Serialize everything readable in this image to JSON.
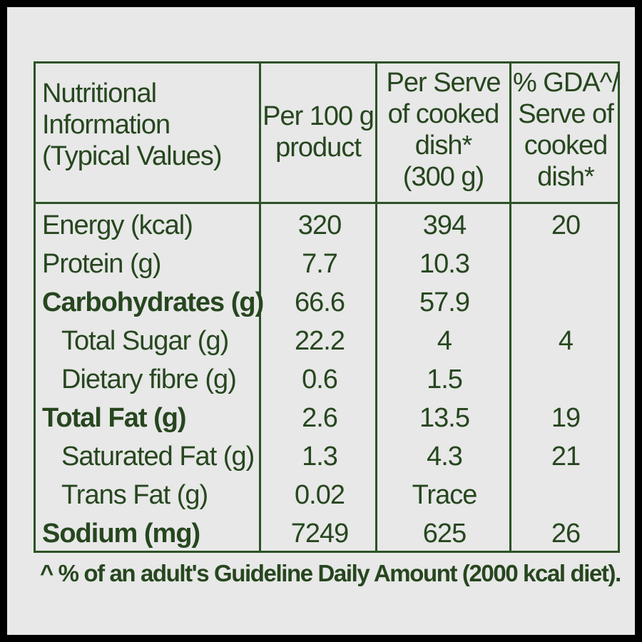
{
  "colors": {
    "ink": "#27461f",
    "border": "#2d5226",
    "background": "#e7e8e7",
    "frame": "#000000"
  },
  "table": {
    "headers": {
      "nutrient": "Nutritional\nInformation\n(Typical Values)",
      "per100g": "Per 100 g\nproduct",
      "perServe": "Per Serve\nof cooked\ndish*\n(300 g)",
      "gda": "% GDA^/\nServe of\ncooked\ndish*"
    },
    "rows": [
      {
        "label": "Energy (kcal)",
        "per100g": "320",
        "perServe": "394",
        "gda": "20"
      },
      {
        "label": "Protein (g)",
        "per100g": "7.7",
        "perServe": "10.3",
        "gda": ""
      },
      {
        "label": "Carbohydrates (g)",
        "per100g": "66.6",
        "perServe": "57.9",
        "gda": ""
      },
      {
        "label": "Total Sugar (g)",
        "per100g": "22.2",
        "perServe": "4",
        "gda": "4"
      },
      {
        "label": "Dietary fibre (g)",
        "per100g": "0.6",
        "perServe": "1.5",
        "gda": ""
      },
      {
        "label": "Total Fat (g)",
        "per100g": "2.6",
        "perServe": "13.5",
        "gda": "19"
      },
      {
        "label": "Saturated Fat (g)",
        "per100g": "1.3",
        "perServe": "4.3",
        "gda": "21"
      },
      {
        "label": "Trans Fat (g)",
        "per100g": "0.02",
        "perServe": "Trace",
        "gda": ""
      },
      {
        "label": "Sodium (mg)",
        "per100g": "7249",
        "perServe": "625",
        "gda": "26"
      }
    ]
  },
  "footnote": "^ % of an adult's Guideline Daily Amount (2000 kcal diet)."
}
